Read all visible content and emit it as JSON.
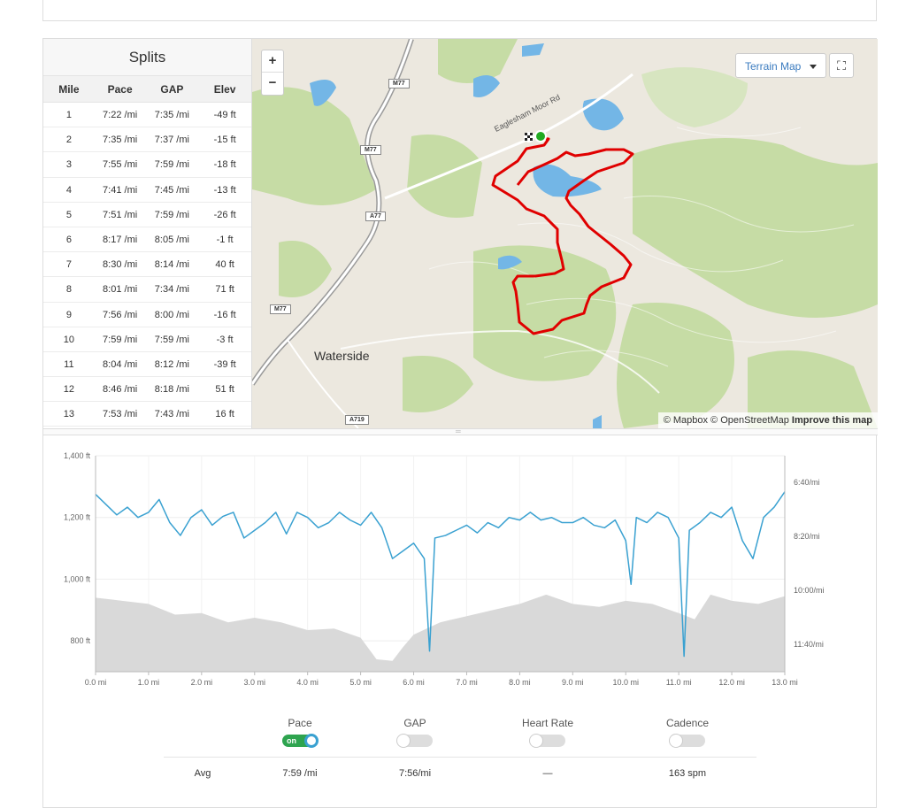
{
  "splits": {
    "title": "Splits",
    "headers": [
      "Mile",
      "Pace",
      "GAP",
      "Elev"
    ],
    "rows": [
      [
        "1",
        "7:22 /mi",
        "7:35 /mi",
        "-49 ft"
      ],
      [
        "2",
        "7:35 /mi",
        "7:37 /mi",
        "-15 ft"
      ],
      [
        "3",
        "7:55 /mi",
        "7:59 /mi",
        "-18 ft"
      ],
      [
        "4",
        "7:41 /mi",
        "7:45 /mi",
        "-13 ft"
      ],
      [
        "5",
        "7:51 /mi",
        "7:59 /mi",
        "-26 ft"
      ],
      [
        "6",
        "8:17 /mi",
        "8:05 /mi",
        "-1 ft"
      ],
      [
        "7",
        "8:30 /mi",
        "8:14 /mi",
        "40 ft"
      ],
      [
        "8",
        "8:01 /mi",
        "7:34 /mi",
        "71 ft"
      ],
      [
        "9",
        "7:56 /mi",
        "8:00 /mi",
        "-16 ft"
      ],
      [
        "10",
        "7:59 /mi",
        "7:59 /mi",
        "-3 ft"
      ],
      [
        "11",
        "8:04 /mi",
        "8:12 /mi",
        "-39 ft"
      ],
      [
        "12",
        "8:46 /mi",
        "8:18 /mi",
        "51 ft"
      ],
      [
        "13",
        "7:53 /mi",
        "7:43 /mi",
        "16 ft"
      ]
    ]
  },
  "map": {
    "zoom_in": "+",
    "zoom_out": "−",
    "style_select": "Terrain Map",
    "fullscreen_glyph": "⛶",
    "place_label": "Waterside",
    "road_label": "Eaglesham Moor Rd",
    "shields": [
      "M77",
      "M77",
      "A77",
      "M77",
      "A719"
    ],
    "attribution": "© Mapbox © OpenStreetMap",
    "improve": "Improve this map",
    "colors": {
      "route": "#e00000",
      "water": "#73b6e6",
      "park": "#c6dca5",
      "base": "#ece8df",
      "start": "#22aa22"
    }
  },
  "chart_data": {
    "type": "line",
    "x_unit": "mi",
    "x_ticks": [
      "0.0 mi",
      "1.0 mi",
      "2.0 mi",
      "3.0 mi",
      "4.0 mi",
      "5.0 mi",
      "6.0 mi",
      "7.0 mi",
      "8.0 mi",
      "9.0 mi",
      "10.0 mi",
      "11.0 mi",
      "12.0 mi",
      "13.0 mi"
    ],
    "xlim": [
      0,
      13
    ],
    "y_left_ticks": [
      "1,400 ft",
      "1,200 ft",
      "1,000 ft",
      "800 ft"
    ],
    "ylim_left": [
      700,
      1400
    ],
    "y_right_ticks": [
      "6:40/mi",
      "8:20/mi",
      "10:00/mi",
      "11:40/mi"
    ],
    "pace_color": "#3aa1d1",
    "elevation_color": "#d9d9d9",
    "series": [
      {
        "name": "Elevation",
        "x": [
          0,
          0.5,
          1,
          1.5,
          2,
          2.5,
          3,
          3.5,
          4,
          4.5,
          5,
          5.3,
          5.6,
          5.8,
          6,
          6.5,
          7,
          7.5,
          8,
          8.5,
          9,
          9.5,
          10,
          10.5,
          11,
          11.3,
          11.6,
          12,
          12.5,
          13
        ],
        "values": [
          940,
          930,
          920,
          885,
          890,
          860,
          875,
          860,
          835,
          840,
          810,
          740,
          735,
          780,
          820,
          860,
          880,
          900,
          920,
          950,
          920,
          910,
          930,
          920,
          890,
          870,
          950,
          930,
          920,
          945
        ]
      },
      {
        "name": "Pace",
        "x": [
          0,
          0.2,
          0.4,
          0.6,
          0.8,
          1.0,
          1.2,
          1.4,
          1.6,
          1.8,
          2.0,
          2.2,
          2.4,
          2.6,
          2.8,
          3.0,
          3.2,
          3.4,
          3.6,
          3.8,
          4.0,
          4.2,
          4.4,
          4.6,
          4.8,
          5.0,
          5.2,
          5.4,
          5.6,
          5.8,
          6.0,
          6.2,
          6.3,
          6.4,
          6.6,
          6.8,
          7.0,
          7.2,
          7.4,
          7.6,
          7.8,
          8.0,
          8.2,
          8.4,
          8.6,
          8.8,
          9.0,
          9.2,
          9.4,
          9.6,
          9.8,
          10.0,
          10.1,
          10.2,
          10.4,
          10.6,
          10.8,
          11.0,
          11.1,
          11.2,
          11.4,
          11.6,
          11.8,
          12.0,
          12.2,
          12.4,
          12.6,
          12.8,
          13.0
        ],
        "values": [
          435,
          455,
          475,
          460,
          480,
          470,
          445,
          490,
          515,
          480,
          465,
          495,
          478,
          470,
          520,
          505,
          490,
          470,
          512,
          470,
          480,
          500,
          490,
          470,
          485,
          495,
          470,
          500,
          560,
          545,
          530,
          560,
          740,
          520,
          515,
          505,
          495,
          510,
          490,
          500,
          480,
          485,
          470,
          485,
          480,
          490,
          490,
          480,
          495,
          500,
          485,
          525,
          610,
          480,
          490,
          470,
          480,
          520,
          750,
          505,
          490,
          470,
          480,
          460,
          525,
          560,
          480,
          460,
          430
        ]
      }
    ]
  },
  "metrics": {
    "items": [
      {
        "label": "Pace",
        "state": "on",
        "avg": "7:59 /mi"
      },
      {
        "label": "GAP",
        "state": "off",
        "avg": "7:56/mi"
      },
      {
        "label": "Heart Rate",
        "state": "off",
        "avg": "—"
      },
      {
        "label": "Cadence",
        "state": "off",
        "avg": "163 spm"
      }
    ],
    "on_text": "on",
    "avg_label": "Avg"
  }
}
